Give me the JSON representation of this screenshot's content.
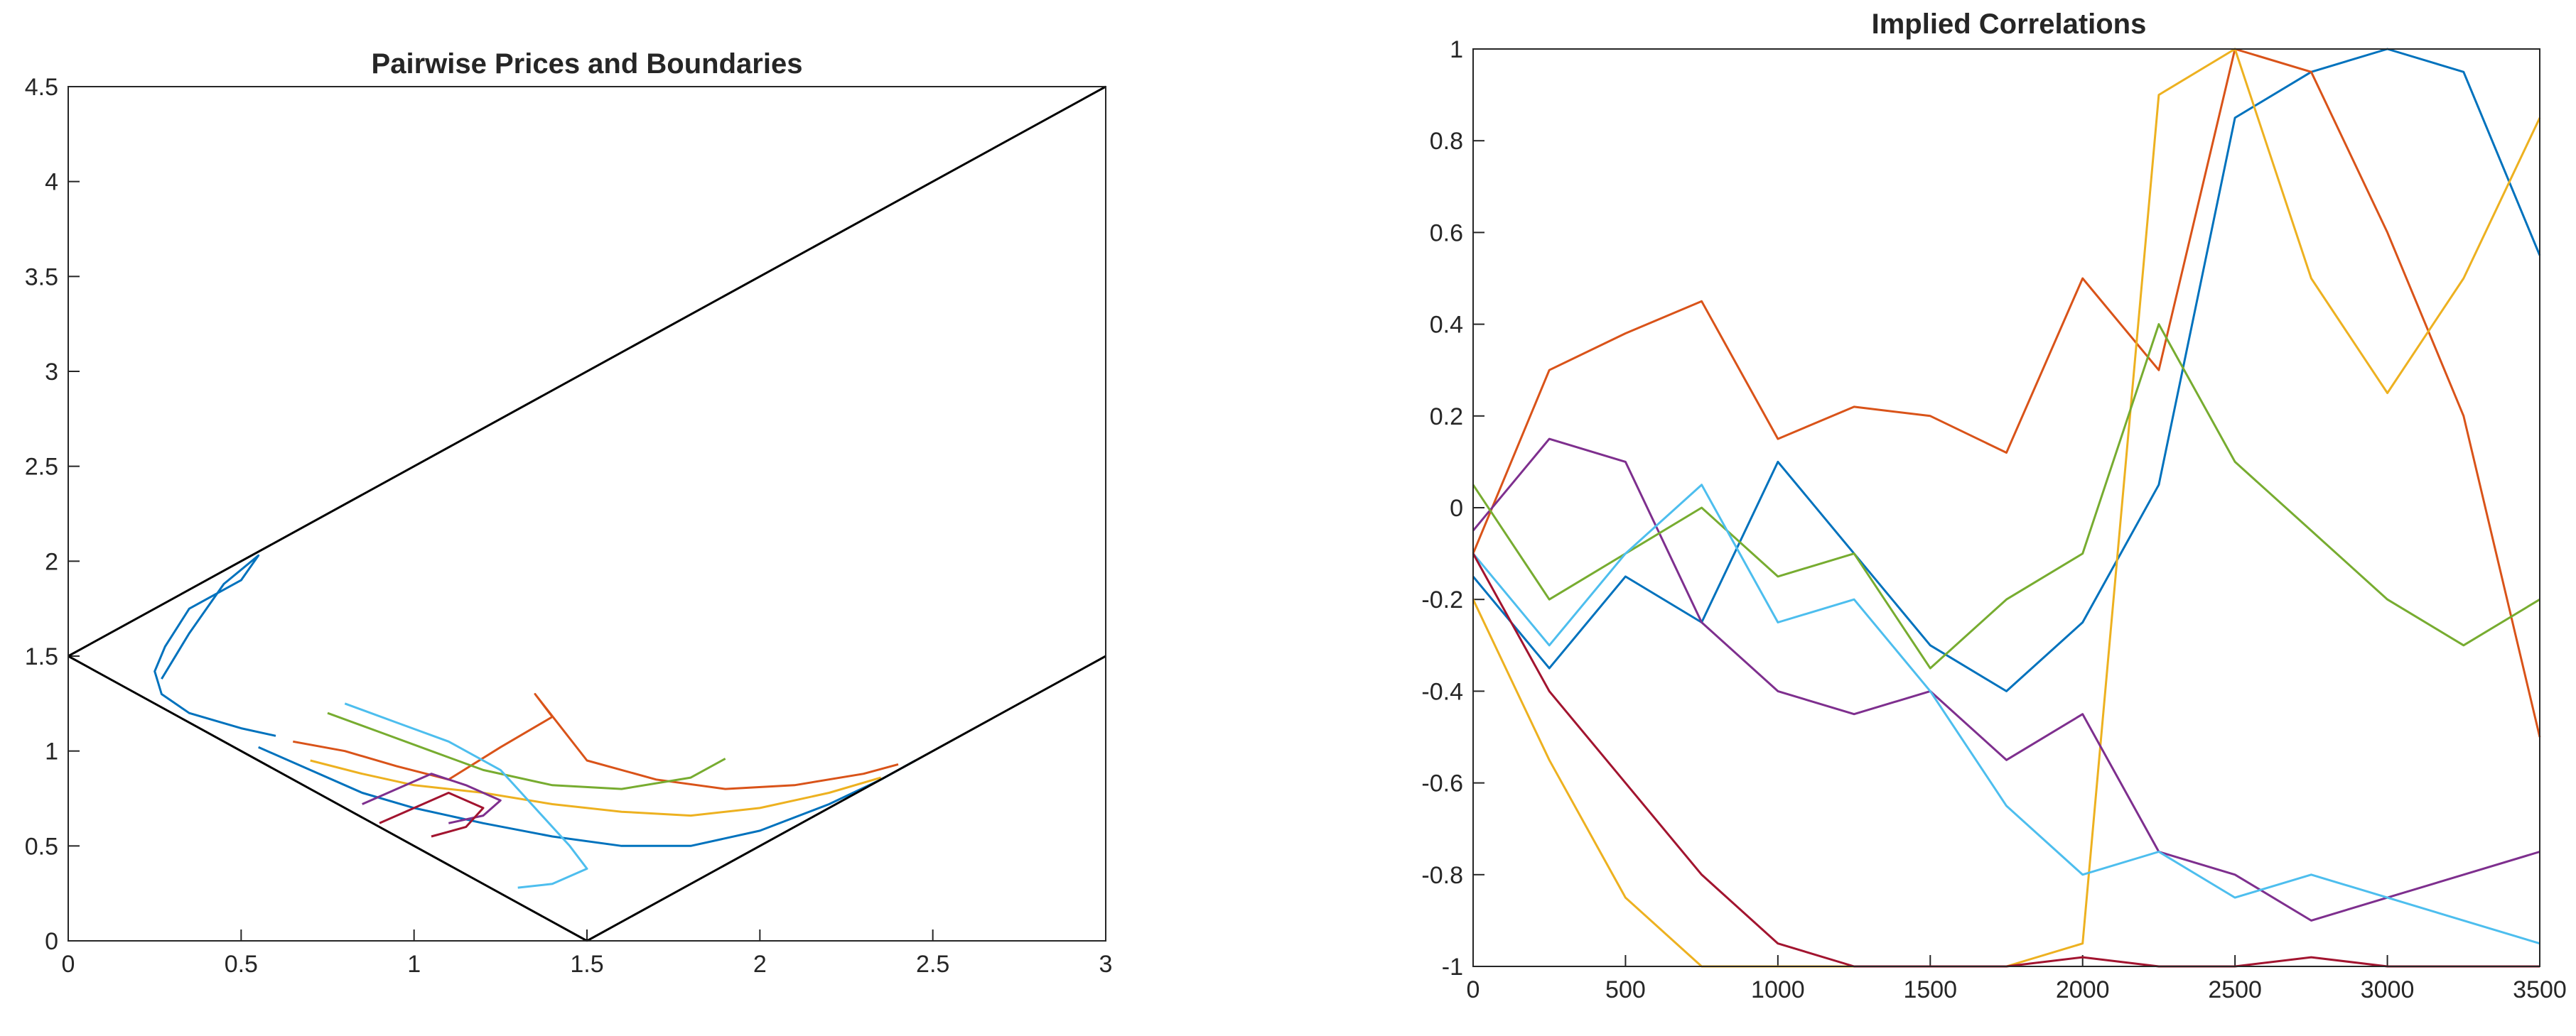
{
  "colors": {
    "axis": "#262626",
    "series": [
      "#0072BD",
      "#D95319",
      "#EDB120",
      "#7E2F8E",
      "#77AC30",
      "#4DBEEE",
      "#A2142F"
    ]
  },
  "chart_data": [
    {
      "type": "line",
      "title": "Pairwise Prices and Boundaries",
      "xlabel": "",
      "ylabel": "",
      "xlim": [
        0,
        3
      ],
      "ylim": [
        0,
        4.5
      ],
      "xticks": [
        "0",
        "0.5",
        "1",
        "1.5",
        "2",
        "2.5",
        "3"
      ],
      "yticks": [
        "0",
        "0.5",
        "1",
        "1.5",
        "2",
        "2.5",
        "3",
        "3.5",
        "4",
        "4.5"
      ],
      "grid": false,
      "legend": "none",
      "boundaries": [
        {
          "x": [
            0,
            3
          ],
          "y": [
            1.5,
            4.5
          ]
        },
        {
          "x": [
            0,
            1.5
          ],
          "y": [
            1.5,
            0
          ]
        },
        {
          "x": [
            1.5,
            3
          ],
          "y": [
            0,
            1.5
          ]
        }
      ],
      "series": [
        {
          "color_index": 0,
          "x": [
            0.27,
            0.35,
            0.45,
            0.55,
            0.5,
            0.35,
            0.28,
            0.25,
            0.27,
            0.35,
            0.5,
            0.6
          ],
          "y": [
            1.38,
            1.62,
            1.88,
            2.03,
            1.9,
            1.75,
            1.55,
            1.42,
            1.3,
            1.2,
            1.12,
            1.08
          ]
        },
        {
          "color_index": 0,
          "x": [
            0.55,
            0.7,
            0.85,
            1.0,
            1.2,
            1.4,
            1.6,
            1.8,
            2.0,
            2.2,
            2.35,
            2.45
          ],
          "y": [
            1.02,
            0.9,
            0.78,
            0.7,
            0.62,
            0.55,
            0.5,
            0.5,
            0.58,
            0.72,
            0.85,
            0.95
          ]
        },
        {
          "color_index": 1,
          "x": [
            0.65,
            0.8,
            0.95,
            1.1,
            1.25,
            1.4,
            1.35,
            1.5,
            1.7,
            1.9,
            2.1,
            2.3,
            2.4
          ],
          "y": [
            1.05,
            1.0,
            0.92,
            0.85,
            1.02,
            1.18,
            1.3,
            0.95,
            0.85,
            0.8,
            0.82,
            0.88,
            0.93
          ]
        },
        {
          "color_index": 2,
          "x": [
            0.7,
            0.85,
            1.0,
            1.2,
            1.4,
            1.6,
            1.8,
            2.0,
            2.2,
            2.35
          ],
          "y": [
            0.95,
            0.88,
            0.82,
            0.78,
            0.72,
            0.68,
            0.66,
            0.7,
            0.78,
            0.86
          ]
        },
        {
          "color_index": 3,
          "x": [
            0.85,
            0.95,
            1.05,
            1.15,
            1.25,
            1.2,
            1.1
          ],
          "y": [
            0.72,
            0.8,
            0.88,
            0.82,
            0.74,
            0.66,
            0.62
          ]
        },
        {
          "color_index": 4,
          "x": [
            0.75,
            0.9,
            1.05,
            1.2,
            1.4,
            1.6,
            1.8,
            1.9
          ],
          "y": [
            1.2,
            1.1,
            1.0,
            0.9,
            0.82,
            0.8,
            0.86,
            0.96
          ]
        },
        {
          "color_index": 5,
          "x": [
            0.8,
            0.95,
            1.1,
            1.25,
            1.35,
            1.45,
            1.5,
            1.4,
            1.3
          ],
          "y": [
            1.25,
            1.15,
            1.05,
            0.9,
            0.7,
            0.5,
            0.38,
            0.3,
            0.28
          ]
        },
        {
          "color_index": 6,
          "x": [
            0.9,
            1.0,
            1.1,
            1.2,
            1.15,
            1.05
          ],
          "y": [
            0.62,
            0.7,
            0.78,
            0.7,
            0.6,
            0.55
          ]
        }
      ]
    },
    {
      "type": "line",
      "title": "Implied Correlations",
      "xlabel": "",
      "ylabel": "",
      "xlim": [
        0,
        3500
      ],
      "ylim": [
        -1,
        1
      ],
      "xticks": [
        "0",
        "500",
        "1000",
        "1500",
        "2000",
        "2500",
        "3000",
        "3500"
      ],
      "yticks": [
        "-1",
        "-0.8",
        "-0.6",
        "-0.4",
        "-0.2",
        "0",
        "0.2",
        "0.4",
        "0.6",
        "0.8",
        "1"
      ],
      "grid": false,
      "legend": "none",
      "series": [
        {
          "color_index": 0,
          "x": [
            0,
            250,
            500,
            750,
            1000,
            1250,
            1500,
            1750,
            2000,
            2250,
            2500,
            2750,
            3000,
            3250,
            3500
          ],
          "y": [
            -0.15,
            -0.35,
            -0.15,
            -0.25,
            0.1,
            -0.1,
            -0.3,
            -0.4,
            -0.25,
            0.05,
            0.85,
            0.95,
            1.0,
            0.95,
            0.55
          ]
        },
        {
          "color_index": 1,
          "x": [
            0,
            250,
            500,
            750,
            1000,
            1250,
            1500,
            1750,
            2000,
            2250,
            2500,
            2750,
            3000,
            3250,
            3500
          ],
          "y": [
            -0.1,
            0.3,
            0.38,
            0.45,
            0.15,
            0.22,
            0.2,
            0.12,
            0.5,
            0.3,
            1.0,
            0.95,
            0.6,
            0.2,
            -0.5
          ]
        },
        {
          "color_index": 2,
          "x": [
            0,
            250,
            500,
            750,
            1000,
            1250,
            1500,
            1750,
            2000,
            2250,
            2500,
            2750,
            3000,
            3250,
            3500
          ],
          "y": [
            -0.2,
            -0.55,
            -0.85,
            -1.0,
            -1.0,
            -1.0,
            -1.0,
            -1.0,
            -0.95,
            0.9,
            1.0,
            0.5,
            0.25,
            0.5,
            0.85
          ]
        },
        {
          "color_index": 3,
          "x": [
            0,
            250,
            500,
            750,
            1000,
            1250,
            1500,
            1750,
            2000,
            2250,
            2500,
            2750,
            3000,
            3250,
            3500
          ],
          "y": [
            -0.05,
            0.15,
            0.1,
            -0.25,
            -0.4,
            -0.45,
            -0.4,
            -0.55,
            -0.45,
            -0.75,
            -0.8,
            -0.9,
            -0.85,
            -0.8,
            -0.75
          ]
        },
        {
          "color_index": 4,
          "x": [
            0,
            250,
            500,
            750,
            1000,
            1250,
            1500,
            1750,
            2000,
            2250,
            2500,
            2750,
            3000,
            3250,
            3500
          ],
          "y": [
            0.05,
            -0.2,
            -0.1,
            0.0,
            -0.15,
            -0.1,
            -0.35,
            -0.2,
            -0.1,
            0.4,
            0.1,
            -0.05,
            -0.2,
            -0.3,
            -0.2
          ]
        },
        {
          "color_index": 5,
          "x": [
            0,
            250,
            500,
            750,
            1000,
            1250,
            1500,
            1750,
            2000,
            2250,
            2500,
            2750,
            3000,
            3250,
            3500
          ],
          "y": [
            -0.1,
            -0.3,
            -0.1,
            0.05,
            -0.25,
            -0.2,
            -0.4,
            -0.65,
            -0.8,
            -0.75,
            -0.85,
            -0.8,
            -0.85,
            -0.9,
            -0.95
          ]
        },
        {
          "color_index": 6,
          "x": [
            0,
            250,
            500,
            750,
            1000,
            1250,
            1500,
            1750,
            2000,
            2250,
            2500,
            2750,
            3000,
            3250,
            3500
          ],
          "y": [
            -0.1,
            -0.4,
            -0.6,
            -0.8,
            -0.95,
            -1.0,
            -1.0,
            -1.0,
            -0.98,
            -1.0,
            -1.0,
            -0.98,
            -1.0,
            -1.0,
            -1.0
          ]
        }
      ]
    }
  ]
}
